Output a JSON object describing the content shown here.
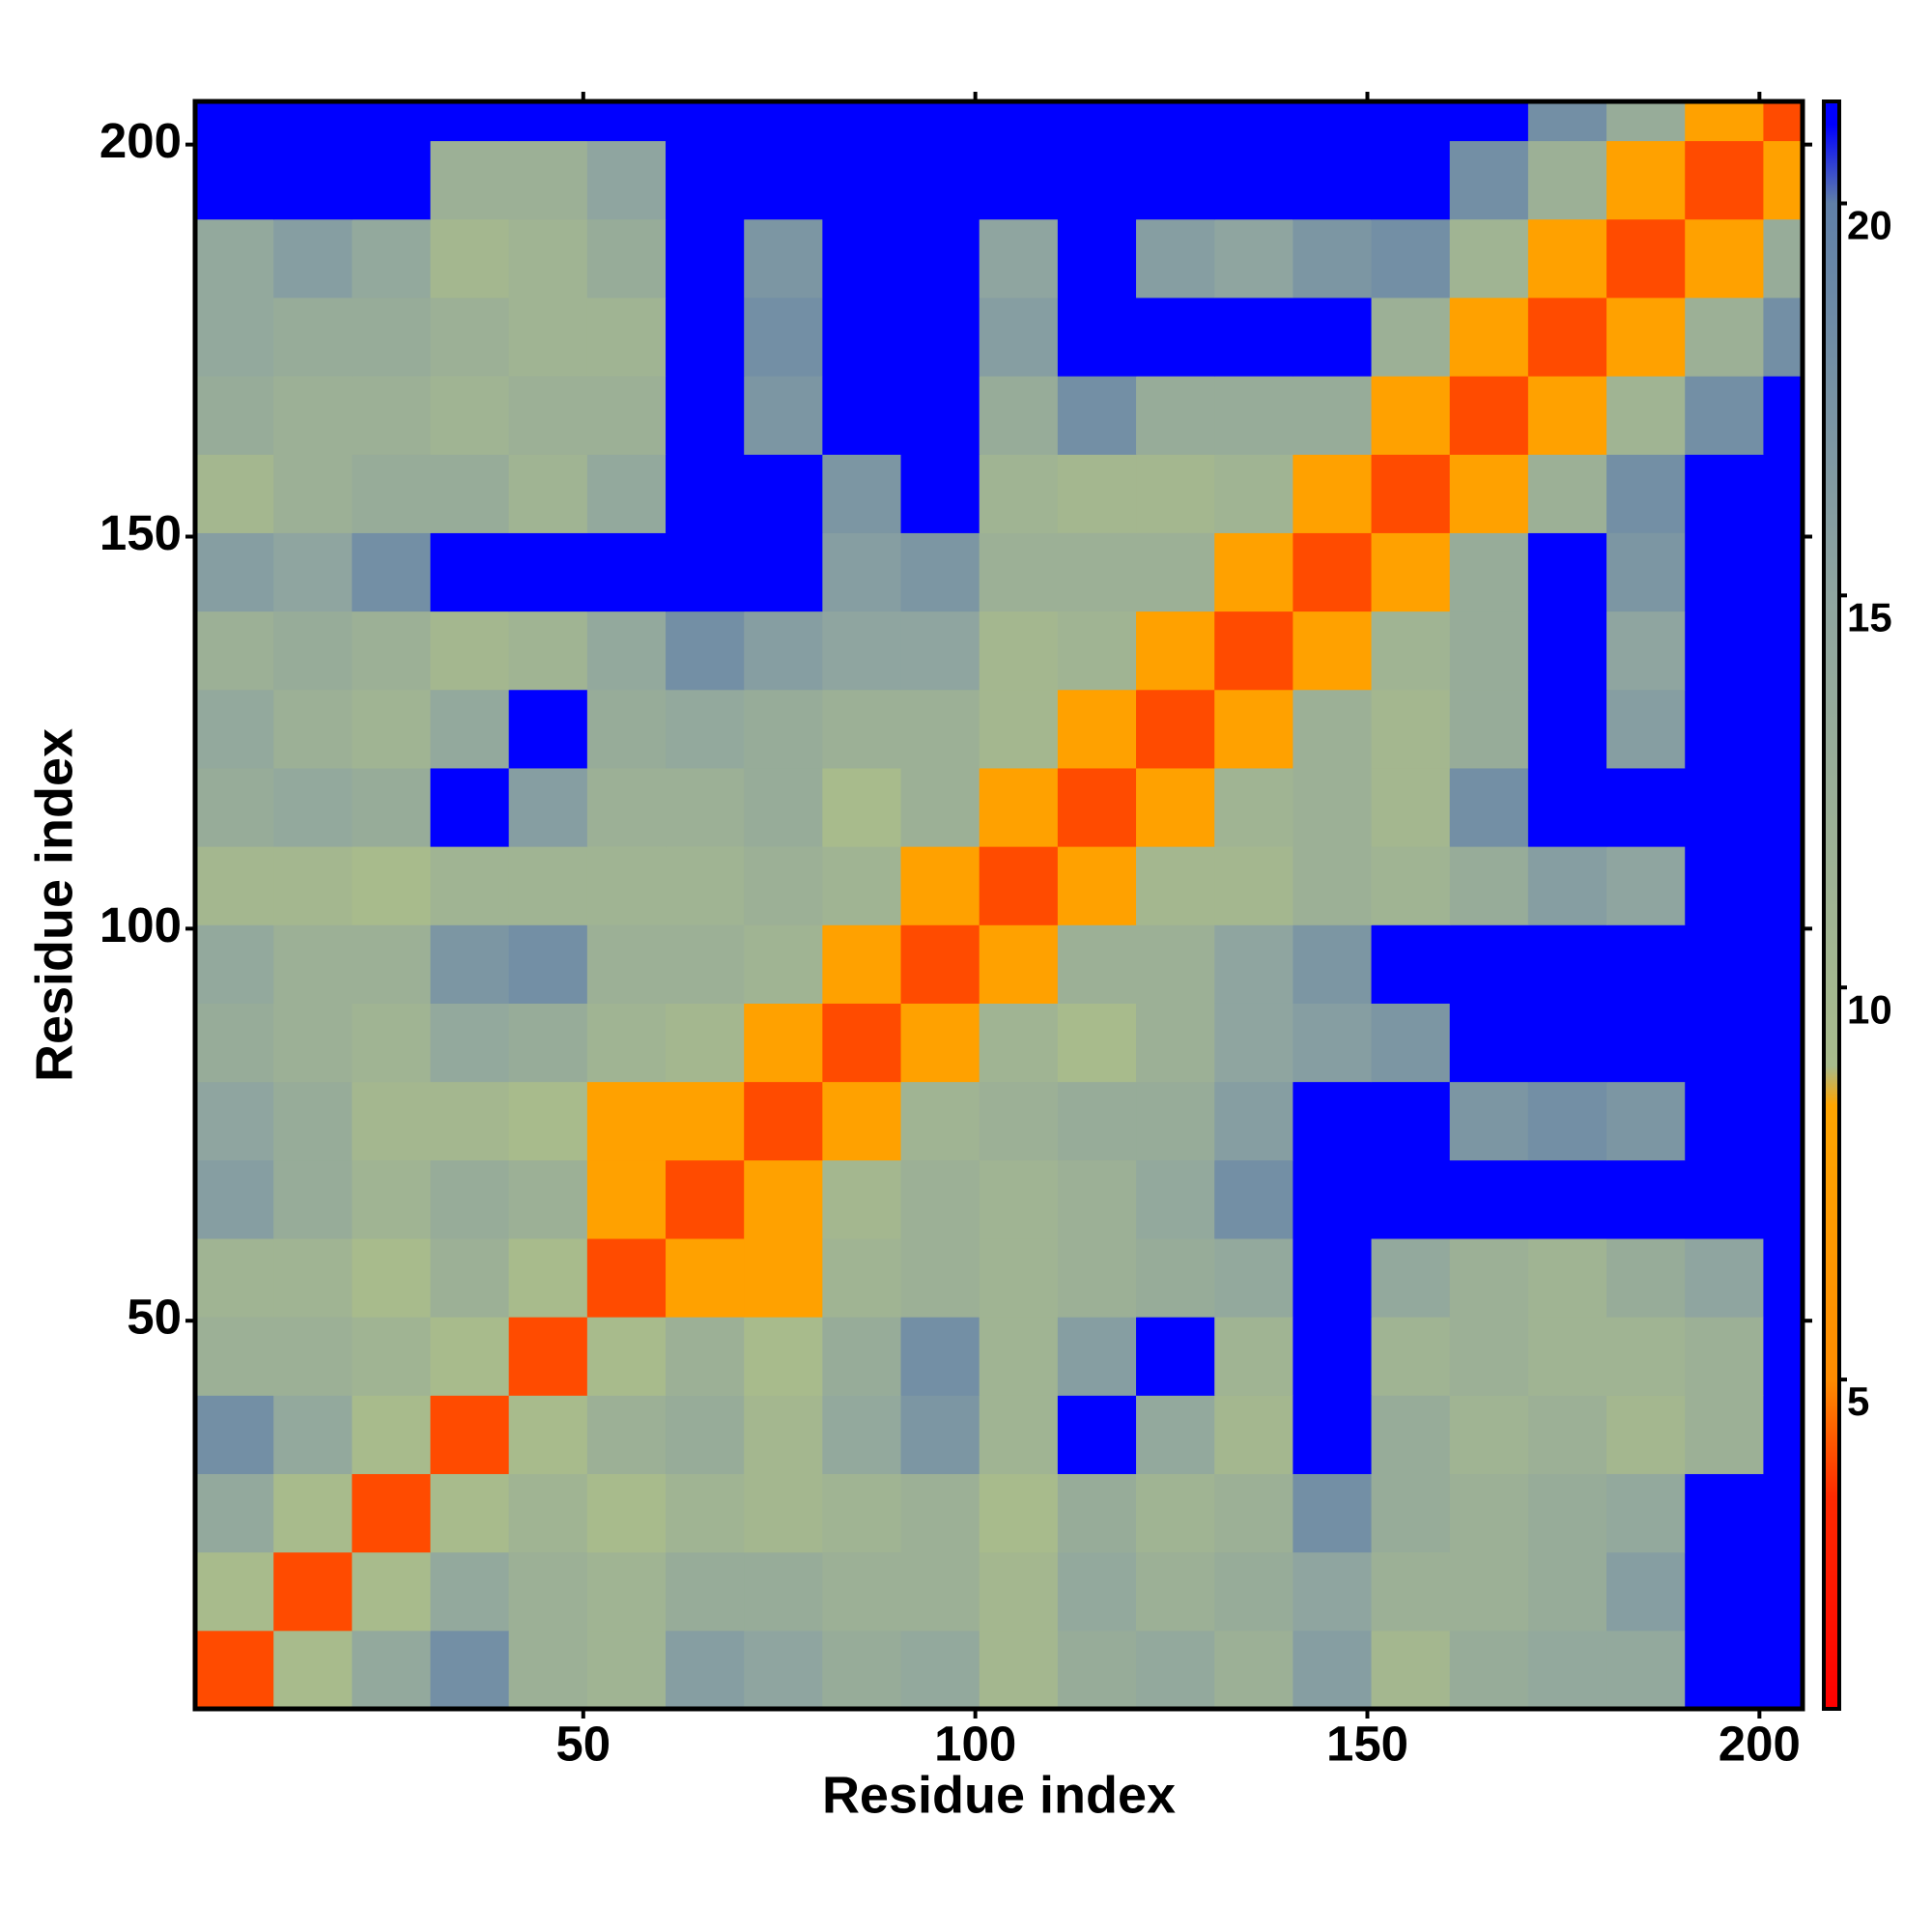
{
  "chart_data": {
    "type": "heatmap",
    "xlabel": "Residue index",
    "ylabel": "Residue index",
    "x_edges": [
      0.5,
      10.5,
      20.5,
      30.5,
      40.5,
      50.5,
      60.5,
      70.5,
      80.5,
      90.5,
      100.5,
      110.5,
      120.5,
      130.5,
      140.5,
      150.5,
      160.5,
      170.5,
      180.5,
      190.5,
      200.5,
      205.5
    ],
    "y_edges": [
      0.5,
      10.5,
      20.5,
      30.5,
      40.5,
      50.5,
      60.5,
      70.5,
      80.5,
      90.5,
      100.5,
      110.5,
      120.5,
      130.5,
      140.5,
      150.5,
      160.5,
      170.5,
      180.5,
      190.5,
      200.5,
      205.5
    ],
    "z": [
      [
        4,
        9,
        14,
        18,
        12,
        11,
        16,
        15,
        13,
        14,
        10,
        13,
        14,
        12,
        16,
        10,
        13,
        14,
        14,
        22,
        22
      ],
      [
        9,
        4,
        9,
        14,
        12,
        11,
        13,
        13,
        12,
        12,
        10,
        14,
        12,
        13,
        15,
        12,
        12,
        13,
        16,
        22,
        22
      ],
      [
        14,
        9,
        4,
        9,
        11,
        9,
        11,
        10,
        11,
        12,
        9,
        13,
        11,
        12,
        18,
        13,
        12,
        13,
        14,
        22,
        22
      ],
      [
        18,
        14,
        9,
        4,
        9,
        12,
        13,
        10,
        14,
        17,
        11,
        22,
        14,
        10,
        22,
        13,
        11,
        12,
        10,
        12,
        22
      ],
      [
        12,
        12,
        11,
        9,
        4,
        9,
        12,
        9,
        13,
        18,
        11,
        16,
        22,
        11,
        22,
        11,
        12,
        11,
        11,
        12,
        22
      ],
      [
        11,
        11,
        9,
        12,
        9,
        4,
        8,
        8,
        11,
        12,
        11,
        12,
        13,
        14,
        22,
        14,
        12,
        11,
        13,
        15,
        22
      ],
      [
        16,
        13,
        11,
        13,
        12,
        8,
        4,
        8,
        10,
        12,
        11,
        12,
        14,
        18,
        22,
        22,
        22,
        22,
        22,
        22,
        22
      ],
      [
        15,
        13,
        10,
        10,
        9,
        8,
        8,
        4,
        8,
        11,
        12,
        13,
        13,
        16,
        22,
        22,
        17,
        18,
        17,
        22,
        22
      ],
      [
        13,
        12,
        11,
        14,
        13,
        11,
        10,
        8,
        4,
        8,
        11,
        9,
        12,
        15,
        16,
        17,
        22,
        22,
        22,
        22,
        22
      ],
      [
        14,
        12,
        12,
        17,
        18,
        12,
        12,
        11,
        8,
        4,
        8,
        12,
        12,
        15,
        17,
        22,
        22,
        22,
        22,
        22,
        22
      ],
      [
        10,
        10,
        9,
        11,
        11,
        11,
        11,
        12,
        11,
        8,
        4,
        8,
        10,
        10,
        12,
        11,
        13,
        16,
        15,
        22,
        22
      ],
      [
        13,
        14,
        13,
        22,
        16,
        12,
        12,
        13,
        9,
        12,
        8,
        4,
        8,
        11,
        12,
        10,
        18,
        22,
        22,
        22,
        22
      ],
      [
        14,
        12,
        11,
        14,
        22,
        13,
        14,
        13,
        12,
        12,
        10,
        8,
        4,
        8,
        12,
        10,
        13,
        22,
        16,
        22,
        22
      ],
      [
        12,
        13,
        12,
        10,
        11,
        14,
        18,
        16,
        15,
        15,
        10,
        11,
        8,
        4,
        8,
        11,
        13,
        22,
        15,
        22,
        22
      ],
      [
        16,
        15,
        18,
        22,
        22,
        22,
        22,
        22,
        16,
        17,
        12,
        12,
        12,
        8,
        4,
        8,
        13,
        22,
        17,
        22,
        22
      ],
      [
        10,
        12,
        13,
        13,
        11,
        14,
        22,
        22,
        17,
        22,
        11,
        10,
        10,
        11,
        8,
        4,
        8,
        12,
        18,
        22,
        22
      ],
      [
        13,
        12,
        12,
        11,
        12,
        12,
        22,
        17,
        22,
        22,
        13,
        18,
        13,
        13,
        13,
        8,
        4,
        8,
        11,
        18,
        22
      ],
      [
        14,
        13,
        13,
        12,
        11,
        11,
        22,
        18,
        22,
        22,
        16,
        22,
        22,
        22,
        22,
        12,
        8,
        4,
        8,
        12,
        18
      ],
      [
        14,
        16,
        14,
        10,
        11,
        13,
        22,
        17,
        22,
        22,
        15,
        22,
        16,
        15,
        17,
        18,
        11,
        8,
        4,
        8,
        13
      ],
      [
        22,
        22,
        22,
        12,
        12,
        15,
        22,
        22,
        22,
        22,
        22,
        22,
        22,
        22,
        22,
        22,
        18,
        12,
        8,
        4,
        8
      ],
      [
        22,
        22,
        22,
        22,
        22,
        22,
        22,
        22,
        22,
        22,
        22,
        22,
        22,
        22,
        22,
        22,
        22,
        18,
        13,
        8,
        4
      ]
    ],
    "xlim": [
      0.5,
      205.5
    ],
    "ylim": [
      0.5,
      205.5
    ],
    "xticks": [
      50,
      100,
      150,
      200
    ],
    "yticks": [
      50,
      100,
      150,
      200
    ],
    "colorbar": {
      "lim": [
        0.8,
        21.3
      ],
      "ticks": [
        5,
        10,
        15,
        20
      ],
      "colormap": [
        {
          "value": 0.8,
          "color": "#ff0000"
        },
        {
          "value": 3.5,
          "color": "#ff2a00"
        },
        {
          "value": 5,
          "color": "#ff8c00"
        },
        {
          "value": 8.5,
          "color": "#ffa500"
        },
        {
          "value": 9,
          "color": "#a8bb8c"
        },
        {
          "value": 15,
          "color": "#8fa5a0"
        },
        {
          "value": 20,
          "color": "#6080a8"
        },
        {
          "value": 21,
          "color": "#0000ff"
        }
      ]
    }
  }
}
